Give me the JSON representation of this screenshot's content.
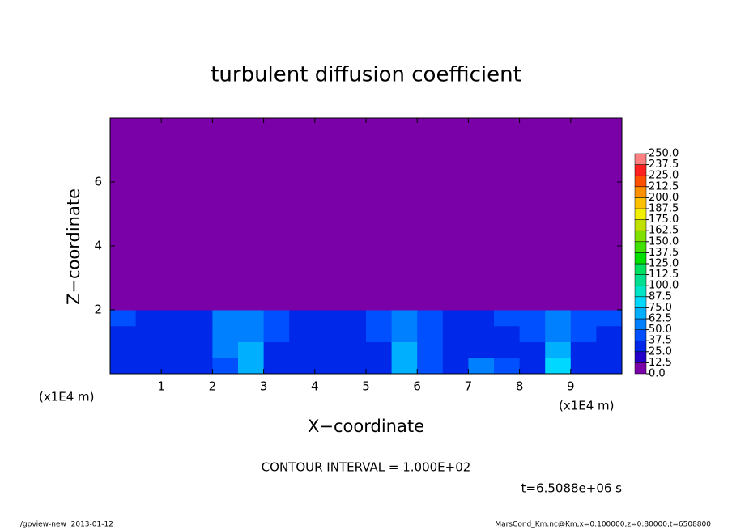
{
  "chart_data": {
    "type": "heatmap",
    "title": "turbulent diffusion coefficient",
    "x_label": "X−coordinate",
    "y_label": "Z−coordinate",
    "x_unit_left": "(x1E4 m)",
    "x_unit_right": "(x1E4 m)",
    "xlim": [
      0,
      10
    ],
    "ylim": [
      0,
      8
    ],
    "xticks": [
      1,
      2,
      3,
      4,
      5,
      6,
      7,
      8,
      9
    ],
    "yticks": [
      2,
      4,
      6
    ],
    "x_edges": [
      0,
      0.5,
      1,
      1.5,
      2,
      2.5,
      3,
      3.5,
      4,
      4.5,
      5,
      5.5,
      6,
      6.5,
      7,
      7.5,
      8,
      8.5,
      9,
      9.5,
      10
    ],
    "z_edges": [
      0,
      0.5,
      1,
      1.5,
      2,
      8
    ],
    "field": [
      [
        30,
        35,
        30,
        28,
        45,
        70,
        35,
        30,
        28,
        30,
        32,
        70,
        40,
        30,
        50,
        40,
        30,
        75,
        35,
        30
      ],
      [
        35,
        30,
        28,
        30,
        50,
        65,
        35,
        30,
        25,
        28,
        30,
        65,
        40,
        30,
        35,
        30,
        30,
        65,
        35,
        30
      ],
      [
        30,
        28,
        30,
        35,
        60,
        55,
        40,
        30,
        28,
        30,
        40,
        60,
        45,
        30,
        30,
        35,
        40,
        60,
        40,
        30
      ],
      [
        40,
        35,
        30,
        35,
        55,
        50,
        40,
        35,
        30,
        35,
        45,
        55,
        45,
        35,
        35,
        40,
        45,
        55,
        45,
        40
      ],
      [
        5,
        5,
        5,
        5,
        5,
        5,
        5,
        5,
        5,
        5,
        5,
        5,
        5,
        5,
        5,
        5,
        5,
        5,
        5,
        5
      ]
    ],
    "levels": [
      {
        "value": 0,
        "label": "0.0"
      },
      12.5,
      {
        "value": 25,
        "label": "25.0"
      },
      37.5,
      {
        "value": 50,
        "label": "50.0"
      },
      62.5,
      {
        "value": 75,
        "label": "75.0"
      },
      87.5,
      {
        "value": 100,
        "label": "100.0"
      },
      112.5,
      {
        "value": 125,
        "label": "125.0"
      },
      137.5,
      {
        "value": 150,
        "label": "150.0"
      },
      162.5,
      {
        "value": 175,
        "label": "175.0"
      },
      187.5,
      {
        "value": 200,
        "label": "200.0"
      },
      212.5,
      {
        "value": 225,
        "label": "225.0"
      },
      237.5,
      {
        "value": 250,
        "label": "250.0"
      }
    ],
    "colors": [
      "#7a00a8",
      "#2400c8",
      "#0028e8",
      "#0050ff",
      "#0080ff",
      "#00b0ff",
      "#00d8ff",
      "#00e4c8",
      "#00e090",
      "#00e060",
      "#00e000",
      "#40e000",
      "#80e000",
      "#c0e000",
      "#f0f000",
      "#ffc000",
      "#ff9000",
      "#ff5000",
      "#ff2020",
      "#ff8080"
    ],
    "contour_interval": "CONTOUR INTERVAL = 1.000E+02",
    "time_label": "t=6.5088e+06 s",
    "footer_left": "./gpview-new  2013-01-12",
    "footer_right": "MarsCond_Km.nc@Km,x=0:100000,z=0:80000,t=6508800"
  }
}
